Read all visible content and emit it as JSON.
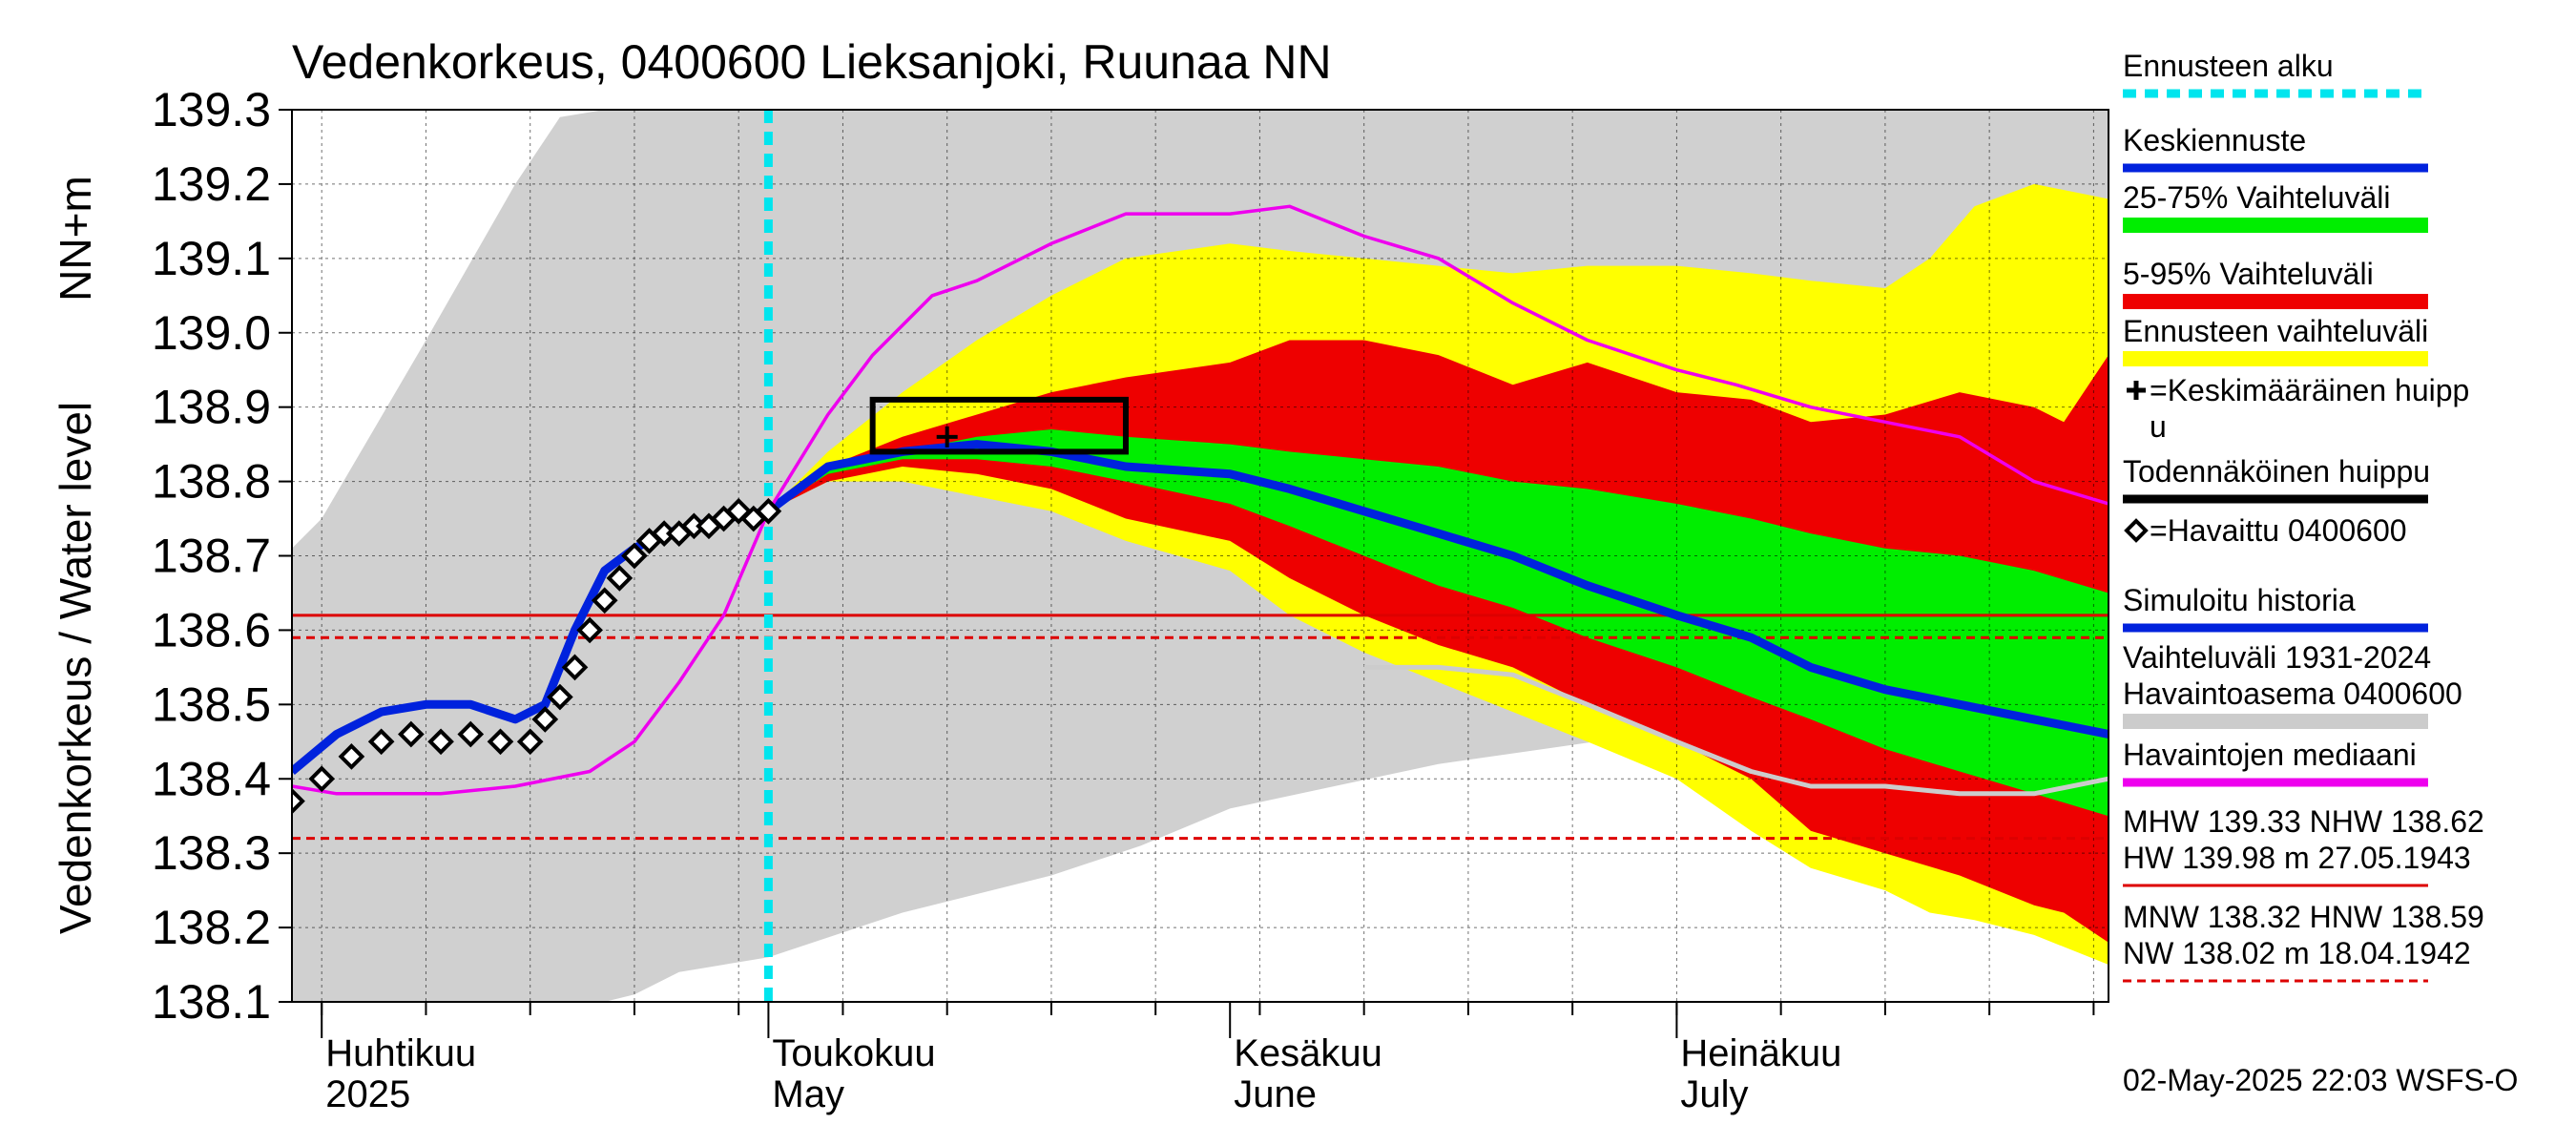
{
  "chart_data": {
    "type": "area",
    "title": "Vedenkorkeus, 0400600 Lieksanjoki, Ruunaa NN",
    "ylabel_primary": "Vedenkorkeus / Water level",
    "ylabel_unit": "NN+m",
    "ylim": [
      138.1,
      139.3
    ],
    "y_ticks": [
      "138.1",
      "138.2",
      "138.3",
      "138.4",
      "138.5",
      "138.6",
      "138.7",
      "138.8",
      "138.9",
      "139.0",
      "139.1",
      "139.2",
      "139.3"
    ],
    "x_range": [
      "2025-03-30",
      "2025-07-30"
    ],
    "month_labels": [
      {
        "line1": "Huhtikuu",
        "line2": "2025",
        "date": "2025-04-01"
      },
      {
        "line1": "Toukokuu",
        "line2": "May",
        "date": "2025-05-01"
      },
      {
        "line1": "Kesäkuu",
        "line2": "June",
        "date": "2025-06-01"
      },
      {
        "line1": "Heinäkuu",
        "line2": "July",
        "date": "2025-07-01"
      }
    ],
    "forecast_start": "2025-05-01",
    "grid": true,
    "legend_position": "right",
    "history_range_band": {
      "x": [
        "2025-03-30",
        "2025-04-01",
        "2025-04-08",
        "2025-04-14",
        "2025-04-17",
        "2025-04-20",
        "2025-04-22",
        "2025-04-25",
        "2025-04-28",
        "2025-05-01",
        "2025-05-10",
        "2025-05-20",
        "2025-05-26",
        "2025-06-01",
        "2025-06-08",
        "2025-06-15",
        "2025-06-22",
        "2025-06-29",
        "2025-07-06",
        "2025-07-13",
        "2025-07-20",
        "2025-07-25",
        "2025-07-30"
      ],
      "high": [
        138.71,
        138.75,
        138.99,
        139.2,
        139.29,
        139.3,
        139.3,
        139.3,
        139.3,
        139.3,
        139.3,
        139.3,
        139.3,
        139.3,
        139.3,
        139.3,
        139.3,
        139.3,
        139.3,
        139.3,
        139.3,
        139.3,
        139.3
      ],
      "low": [
        138.1,
        138.1,
        138.1,
        138.1,
        138.1,
        138.1,
        138.11,
        138.14,
        138.15,
        138.16,
        138.22,
        138.27,
        138.31,
        138.36,
        138.39,
        138.42,
        138.44,
        138.46,
        138.48,
        138.5,
        138.52,
        138.53,
        138.54
      ]
    },
    "forecast_band_5_95": {
      "x": [
        "2025-05-01",
        "2025-05-05",
        "2025-05-10",
        "2025-05-15",
        "2025-05-20",
        "2025-05-25",
        "2025-06-01",
        "2025-06-05",
        "2025-06-10",
        "2025-06-15",
        "2025-06-20",
        "2025-06-25",
        "2025-07-01",
        "2025-07-06",
        "2025-07-10",
        "2025-07-15",
        "2025-07-20",
        "2025-07-25",
        "2025-07-27",
        "2025-07-30"
      ],
      "high": [
        138.76,
        138.82,
        138.86,
        138.89,
        138.92,
        138.94,
        138.96,
        138.99,
        138.99,
        138.97,
        138.93,
        138.96,
        138.92,
        138.91,
        138.88,
        138.89,
        138.92,
        138.9,
        138.88,
        138.97
      ],
      "low": [
        138.76,
        138.8,
        138.82,
        138.81,
        138.79,
        138.75,
        138.72,
        138.67,
        138.62,
        138.58,
        138.55,
        138.5,
        138.45,
        138.4,
        138.33,
        138.3,
        138.27,
        138.23,
        138.22,
        138.18
      ]
    },
    "forecast_band_25_75": {
      "x": [
        "2025-05-01",
        "2025-05-05",
        "2025-05-10",
        "2025-05-15",
        "2025-05-20",
        "2025-05-25",
        "2025-06-01",
        "2025-06-05",
        "2025-06-10",
        "2025-06-15",
        "2025-06-20",
        "2025-06-25",
        "2025-07-01",
        "2025-07-06",
        "2025-07-10",
        "2025-07-15",
        "2025-07-20",
        "2025-07-25",
        "2025-07-30"
      ],
      "high": [
        138.76,
        138.82,
        138.84,
        138.86,
        138.87,
        138.86,
        138.85,
        138.84,
        138.83,
        138.82,
        138.8,
        138.79,
        138.77,
        138.75,
        138.73,
        138.71,
        138.7,
        138.68,
        138.65
      ],
      "low": [
        138.76,
        138.81,
        138.83,
        138.83,
        138.82,
        138.8,
        138.77,
        138.74,
        138.7,
        138.66,
        138.63,
        138.59,
        138.55,
        138.51,
        138.48,
        138.44,
        138.41,
        138.38,
        138.35
      ]
    },
    "forecast_range_yellow": {
      "x": [
        "2025-05-01",
        "2025-05-05",
        "2025-05-10",
        "2025-05-15",
        "2025-05-20",
        "2025-05-25",
        "2025-06-01",
        "2025-06-05",
        "2025-06-10",
        "2025-06-15",
        "2025-06-20",
        "2025-06-25",
        "2025-07-01",
        "2025-07-06",
        "2025-07-10",
        "2025-07-15",
        "2025-07-18",
        "2025-07-21",
        "2025-07-25",
        "2025-07-30"
      ],
      "high": [
        138.76,
        138.84,
        138.92,
        138.99,
        139.05,
        139.1,
        139.12,
        139.11,
        139.1,
        139.09,
        139.08,
        139.09,
        139.09,
        139.08,
        139.07,
        139.06,
        139.1,
        139.17,
        139.2,
        139.18
      ],
      "low": [
        138.76,
        138.8,
        138.8,
        138.78,
        138.76,
        138.72,
        138.68,
        138.62,
        138.57,
        138.53,
        138.49,
        138.45,
        138.4,
        138.33,
        138.28,
        138.25,
        138.22,
        138.21,
        138.19,
        138.15
      ]
    },
    "series": [
      {
        "name": "Keskiennuste",
        "color": "#0022dd",
        "x": [
          "2025-05-01",
          "2025-05-05",
          "2025-05-10",
          "2025-05-15",
          "2025-05-20",
          "2025-05-25",
          "2025-06-01",
          "2025-06-05",
          "2025-06-10",
          "2025-06-15",
          "2025-06-20",
          "2025-06-25",
          "2025-07-01",
          "2025-07-06",
          "2025-07-10",
          "2025-07-15",
          "2025-07-20",
          "2025-07-25",
          "2025-07-30"
        ],
        "y": [
          138.76,
          138.82,
          138.84,
          138.85,
          138.84,
          138.82,
          138.81,
          138.79,
          138.76,
          138.73,
          138.7,
          138.66,
          138.62,
          138.59,
          138.55,
          138.52,
          138.5,
          138.48,
          138.46
        ]
      },
      {
        "name": "Simuloitu historia",
        "color": "#0022dd",
        "x": [
          "2025-03-30",
          "2025-04-02",
          "2025-04-05",
          "2025-04-08",
          "2025-04-11",
          "2025-04-14",
          "2025-04-16",
          "2025-04-18",
          "2025-04-20",
          "2025-04-22",
          "2025-04-24",
          "2025-04-26",
          "2025-04-28",
          "2025-05-01"
        ],
        "y": [
          138.41,
          138.46,
          138.49,
          138.5,
          138.5,
          138.48,
          138.5,
          138.6,
          138.68,
          138.71,
          138.73,
          138.74,
          138.75,
          138.76
        ]
      },
      {
        "name": "Havaintojen mediaani",
        "color": "#ee00ee",
        "x": [
          "2025-03-30",
          "2025-04-02",
          "2025-04-09",
          "2025-04-14",
          "2025-04-19",
          "2025-04-22",
          "2025-04-25",
          "2025-04-28",
          "2025-05-01",
          "2025-05-05",
          "2025-05-08",
          "2025-05-12",
          "2025-05-15",
          "2025-05-20",
          "2025-05-25",
          "2025-06-01",
          "2025-06-05",
          "2025-06-10",
          "2025-06-15",
          "2025-06-20",
          "2025-06-25",
          "2025-07-01",
          "2025-07-05",
          "2025-07-10",
          "2025-07-15",
          "2025-07-20",
          "2025-07-25",
          "2025-07-30"
        ],
        "y": [
          138.39,
          138.38,
          138.38,
          138.39,
          138.41,
          138.45,
          138.53,
          138.62,
          138.76,
          138.89,
          138.97,
          139.05,
          139.07,
          139.12,
          139.16,
          139.16,
          139.17,
          139.13,
          139.1,
          139.04,
          138.99,
          138.95,
          138.93,
          138.9,
          138.88,
          138.86,
          138.8,
          138.77
        ]
      },
      {
        "name": "Havaintoasema median (grey)",
        "color": "#cccccc",
        "x": [
          "2025-06-10",
          "2025-06-15",
          "2025-06-20",
          "2025-06-25",
          "2025-07-01",
          "2025-07-06",
          "2025-07-10",
          "2025-07-15",
          "2025-07-20",
          "2025-07-25",
          "2025-07-30"
        ],
        "y": [
          138.55,
          138.55,
          138.54,
          138.5,
          138.45,
          138.41,
          138.39,
          138.39,
          138.38,
          138.38,
          138.4
        ]
      },
      {
        "name": "Havaittu 0400600",
        "color": "#000000",
        "x": [
          "2025-03-30",
          "2025-04-01",
          "2025-04-03",
          "2025-04-05",
          "2025-04-07",
          "2025-04-09",
          "2025-04-11",
          "2025-04-13",
          "2025-04-15",
          "2025-04-16",
          "2025-04-17",
          "2025-04-18",
          "2025-04-19",
          "2025-04-20",
          "2025-04-21",
          "2025-04-22",
          "2025-04-23",
          "2025-04-24",
          "2025-04-25",
          "2025-04-26",
          "2025-04-27",
          "2025-04-28",
          "2025-04-29",
          "2025-04-30",
          "2025-05-01"
        ],
        "y": [
          138.37,
          138.4,
          138.43,
          138.45,
          138.46,
          138.45,
          138.46,
          138.45,
          138.45,
          138.48,
          138.51,
          138.55,
          138.6,
          138.64,
          138.67,
          138.7,
          138.72,
          138.73,
          138.73,
          138.74,
          138.74,
          138.75,
          138.76,
          138.75,
          138.76
        ]
      }
    ],
    "mean_peak": {
      "label": "Keskimääräinen huippu",
      "x": "2025-05-13",
      "y": 138.86
    },
    "probable_peak_box": {
      "label": "Todennäköinen huippu",
      "x0": "2025-05-08",
      "x1": "2025-05-25",
      "y0": 138.84,
      "y1": 138.91
    },
    "reference_lines": [
      {
        "name": "NHW",
        "value": 138.62,
        "style": "solid",
        "color": "#dd0000"
      },
      {
        "name": "HNW",
        "value": 138.59,
        "style": "dashed",
        "color": "#dd0000"
      },
      {
        "name": "MNW",
        "value": 138.32,
        "style": "dashed",
        "color": "#dd0000"
      }
    ],
    "legend": [
      {
        "label": "Ennusteen alku",
        "kind": "dashed",
        "color": "#00e5ee"
      },
      {
        "label": "Keskiennuste",
        "kind": "line",
        "color": "#0022dd"
      },
      {
        "label": "25-75% Vaihteluväli",
        "kind": "bar",
        "color": "#00ee00"
      },
      {
        "label": "5-95% Vaihteluväli",
        "kind": "bar",
        "color": "#ee0000"
      },
      {
        "label": "Ennusteen vaihteluväli",
        "kind": "bar",
        "color": "#ffff00"
      },
      {
        "label": "=Keskimääräinen huipp",
        "label2": "u",
        "kind": "plus",
        "color": "#000000"
      },
      {
        "label": "Todennäköinen huippu",
        "kind": "line",
        "color": "#000000"
      },
      {
        "label": "=Havaittu 0400600",
        "kind": "diamond",
        "color": "#000000"
      },
      {
        "label": "Simuloitu historia",
        "kind": "line",
        "color": "#0022dd"
      },
      {
        "label": "Vaihteluväli 1931-2024",
        "label2": " Havaintoasema 0400600",
        "kind": "bar",
        "color": "#cccccc"
      },
      {
        "label": "Havaintojen mediaani",
        "kind": "line",
        "color": "#ee00ee"
      },
      {
        "label": "MHW 139.33 NHW 138.62",
        "label2": "HW 139.98 m 27.05.1943",
        "kind": "thin",
        "color": "#dd0000"
      },
      {
        "label": "MNW 138.32 HNW 138.59",
        "label2": "NW 138.02 m 18.04.1942",
        "kind": "dashed-thin",
        "color": "#dd0000"
      }
    ],
    "footer_timestamp": "02-May-2025 22:03 WSFS-O"
  }
}
